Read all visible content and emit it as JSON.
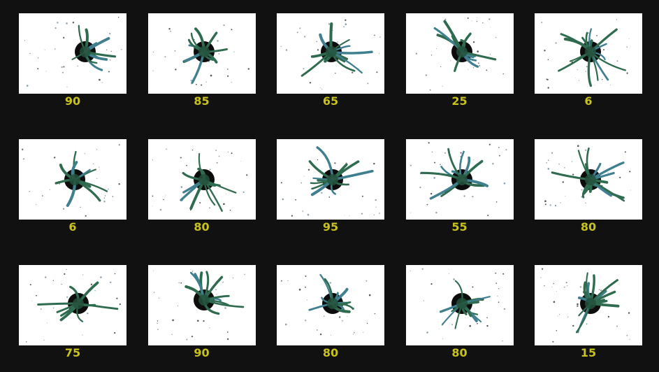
{
  "label_color": "#c8c21a",
  "background_color": "#111111",
  "plants": [
    {
      "score": "90"
    },
    {
      "score": "85"
    },
    {
      "score": "65"
    },
    {
      "score": "25"
    },
    {
      "score": "6"
    },
    {
      "score": "6"
    },
    {
      "score": "80"
    },
    {
      "score": "95"
    },
    {
      "score": "55"
    },
    {
      "score": "80"
    },
    {
      "score": "75"
    },
    {
      "score": "90"
    },
    {
      "score": "80"
    },
    {
      "score": "80"
    },
    {
      "score": "15"
    }
  ]
}
